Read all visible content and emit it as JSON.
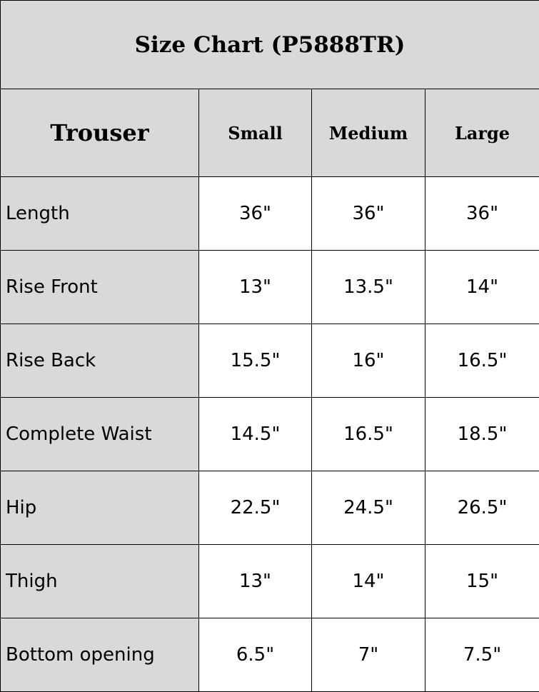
{
  "title": "Size Chart (P5888TR)",
  "header": [
    "Trouser",
    "Small",
    "Medium",
    "Large"
  ],
  "rows": [
    {
      "label": "Length",
      "values": [
        "36\"",
        "36\"",
        "36\""
      ]
    },
    {
      "label": "Rise Front",
      "values": [
        "13\"",
        "13.5\"",
        "14\""
      ]
    },
    {
      "label": "Rise Back",
      "values": [
        "15.5\"",
        "16\"",
        "16.5\""
      ]
    },
    {
      "label": "Complete Waist",
      "values": [
        "14.5\"",
        "16.5\"",
        "18.5\""
      ]
    },
    {
      "label": "Hip",
      "values": [
        "22.5\"",
        "24.5\"",
        "26.5\""
      ]
    },
    {
      "label": "Thigh",
      "values": [
        "13\"",
        "14\"",
        "15\""
      ]
    },
    {
      "label": "Bottom opening",
      "values": [
        "6.5\"",
        "7\"",
        "7.5\""
      ]
    }
  ],
  "colors": {
    "header_bg": "#d9d9d9",
    "cell_bg": "#ffffff",
    "border": "#000000"
  }
}
